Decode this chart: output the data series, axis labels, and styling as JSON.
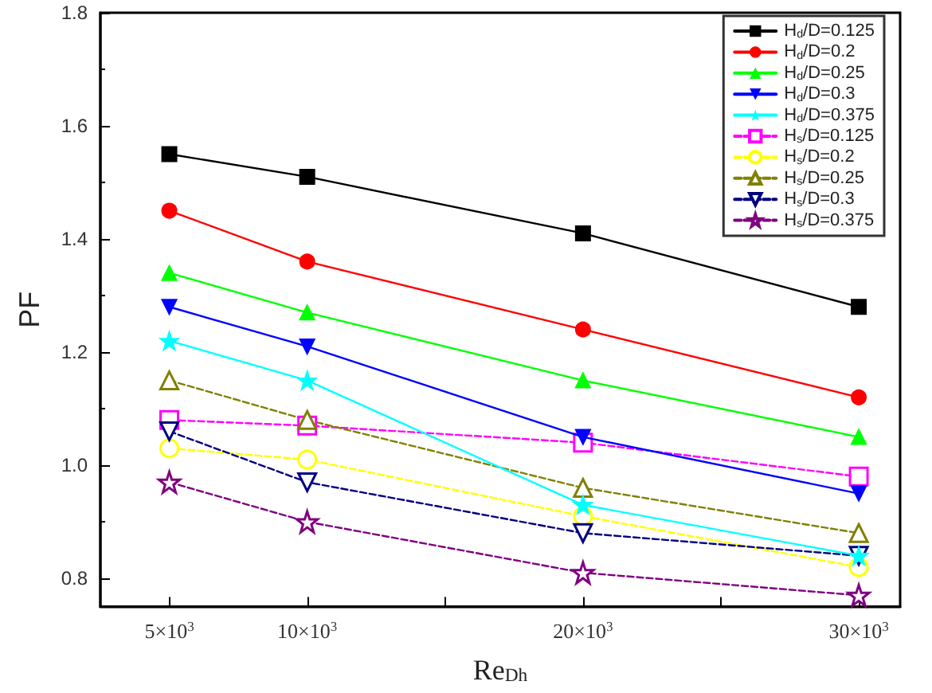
{
  "chart_data": {
    "type": "line",
    "xlabel": "Re$_{Dh}$",
    "ylabel": "PF",
    "x": [
      5000,
      10000,
      20000,
      30000
    ],
    "xlim": [
      2500,
      31500
    ],
    "xticks": [
      {
        "value": 5000,
        "label": "5×10$^{3}$"
      },
      {
        "value": 10000,
        "label": "10×10$^{3}$"
      },
      {
        "value": 15000,
        "label": null
      },
      {
        "value": 20000,
        "label": "20×10$^{3}$"
      },
      {
        "value": 25000,
        "label": null
      },
      {
        "value": 30000,
        "label": "30×10$^{3}$"
      }
    ],
    "ylim": [
      0.75,
      1.8
    ],
    "yticks": [
      0.8,
      {
        "value": 1,
        "label": "1.0"
      },
      1.2,
      1.4,
      1.6,
      1.8
    ],
    "grid": false,
    "legend": "top right",
    "series": [
      {
        "name": "H$_{d}$/D=0.125",
        "color": "#000000",
        "marker": "square",
        "line_style": "solid",
        "values": [
          1.55,
          1.51,
          1.41,
          1.28
        ]
      },
      {
        "name": "H$_{d}$/D=0.2",
        "color": "#ff0000",
        "marker": "circle",
        "line_style": "solid",
        "values": [
          1.45,
          1.36,
          1.24,
          1.12
        ]
      },
      {
        "name": "H$_{d}$/D=0.25",
        "color": "#00ff00",
        "marker": "triangle",
        "line_style": "solid",
        "values": [
          1.34,
          1.27,
          1.15,
          1.05
        ]
      },
      {
        "name": "H$_{d}$/D=0.3",
        "color": "#0000ff",
        "marker": "triangle-down",
        "line_style": "solid",
        "values": [
          1.28,
          1.21,
          1.05,
          0.95
        ]
      },
      {
        "name": "H$_{d}$/D=0.375",
        "color": "#00ffff",
        "marker": "star",
        "line_style": "solid",
        "values": [
          1.22,
          1.15,
          0.93,
          0.84
        ]
      },
      {
        "name": "H$_{s}$/D=0.125",
        "color": "#ff00ff",
        "marker": "square",
        "line_style": "dashed",
        "values": [
          1.08,
          1.07,
          1.04,
          0.98
        ]
      },
      {
        "name": "H$_{s}$/D=0.2",
        "color": "#ffff00",
        "marker": "circle",
        "line_style": "dashed",
        "values": [
          1.03,
          1.01,
          0.91,
          0.82
        ]
      },
      {
        "name": "H$_{s}$/D=0.25",
        "color": "#808000",
        "marker": "triangle",
        "line_style": "dashed",
        "values": [
          1.15,
          1.08,
          0.96,
          0.88
        ]
      },
      {
        "name": "H$_{s}$/D=0.3",
        "color": "#000080",
        "marker": "triangle-down",
        "line_style": "dashed",
        "values": [
          1.06,
          0.97,
          0.88,
          0.84
        ]
      },
      {
        "name": "H$_{s}$/D=0.375",
        "color": "#800080",
        "marker": "star",
        "line_style": "dashed",
        "values": [
          0.97,
          0.9,
          0.81,
          0.77
        ]
      }
    ]
  }
}
